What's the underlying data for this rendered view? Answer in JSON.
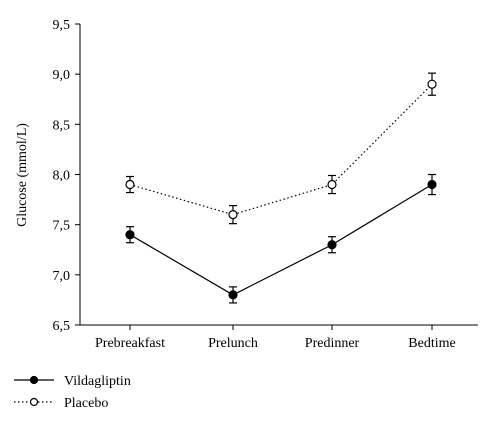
{
  "chart_data": {
    "type": "line",
    "categories": [
      "Prebreakfast",
      "Prelunch",
      "Predinner",
      "Bedtime"
    ],
    "ylabel": "Glucose (mmol/L)",
    "xlabel": "",
    "title": "",
    "ylim": [
      6.5,
      9.5
    ],
    "yticks": [
      "6,5",
      "7,0",
      "7,5",
      "8,0",
      "8,5",
      "9,0",
      "9,5"
    ],
    "ytick_values": [
      6.5,
      7.0,
      7.5,
      8.0,
      8.5,
      9.0,
      9.5
    ],
    "legend_position": "bottom-left",
    "series": [
      {
        "name": "Vildagliptin",
        "values": [
          7.4,
          6.8,
          7.3,
          7.9
        ],
        "error": [
          0.08,
          0.08,
          0.08,
          0.1
        ],
        "marker": "filled-circle",
        "line_style": "solid",
        "color": "#000000"
      },
      {
        "name": "Placebo",
        "values": [
          7.9,
          7.6,
          7.9,
          8.9
        ],
        "error": [
          0.08,
          0.09,
          0.09,
          0.11
        ],
        "marker": "open-circle",
        "line_style": "dotted",
        "color": "#000000"
      }
    ]
  }
}
